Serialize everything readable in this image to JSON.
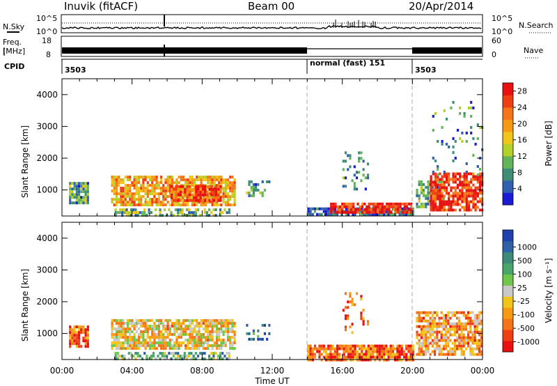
{
  "header": {
    "station": "Inuvik (fitACF)",
    "beam": "Beam 00",
    "date": "20/Apr/2014"
  },
  "strip": {
    "nsky_label": "N.Sky",
    "nsearch_label": "N.Search",
    "freq_label_line1": "Freq.",
    "freq_label_line2": "[MHz]",
    "nave_label": "Nave",
    "cpid_label": "CPID",
    "noise_left_ticks": [
      "10^5",
      "10^0"
    ],
    "noise_right_ticks": [
      "10^5",
      "10^0"
    ],
    "freq_left_ticks": [
      "18",
      "8"
    ],
    "freq_right_ticks": [
      "60",
      "0"
    ],
    "cpid_segments": [
      {
        "start_hour": 0,
        "end_hour": 14,
        "label": "3503"
      },
      {
        "start_hour": 14,
        "end_hour": 20,
        "label": "normal (fast) 151"
      },
      {
        "start_hour": 20,
        "end_hour": 24,
        "label": "3503"
      }
    ]
  },
  "chart_data": [
    {
      "type": "heatmap",
      "panel": "power",
      "xlabel": "",
      "ylabel": "Slant Range [km]",
      "xlim": [
        0,
        24
      ],
      "ylim": [
        180,
        4500
      ],
      "yticks": [
        1000,
        2000,
        3000,
        4000
      ],
      "colorbar": {
        "label": "Power [dB]",
        "ticks": [
          "4",
          "8",
          "12",
          "16",
          "20",
          "24",
          "28"
        ],
        "range": [
          0,
          30
        ],
        "colors": [
          "#1b1bd6",
          "#2f5fae",
          "#3e8d77",
          "#63b35a",
          "#b2d02a",
          "#f0c418",
          "#f59a13",
          "#f4741a",
          "#ee3f14",
          "#e81010"
        ]
      },
      "regions": [
        {
          "x": [
            0.4,
            1.5
          ],
          "y": [
            600,
            1250
          ],
          "level": 0.3,
          "density": 0.85
        },
        {
          "x": [
            2.8,
            9.8
          ],
          "y": [
            560,
            1450
          ],
          "level": 0.65,
          "density": 0.8
        },
        {
          "x": [
            6.2,
            9.0
          ],
          "y": [
            700,
            1150
          ],
          "level": 0.85,
          "density": 0.8
        },
        {
          "x": [
            3.0,
            9.5
          ],
          "y": [
            190,
            420
          ],
          "level": 0.35,
          "density": 0.55
        },
        {
          "x": [
            10.5,
            11.8
          ],
          "y": [
            800,
            1300
          ],
          "level": 0.3,
          "density": 0.5
        },
        {
          "x": [
            14.0,
            20.0
          ],
          "y": [
            190,
            450
          ],
          "level": 0.15,
          "density": 0.85
        },
        {
          "x": [
            15.3,
            19.9
          ],
          "y": [
            280,
            600
          ],
          "level": 0.9,
          "density": 0.85
        },
        {
          "x": [
            16.0,
            17.4
          ],
          "y": [
            1000,
            2300
          ],
          "level": 0.2,
          "density": 0.25
        },
        {
          "x": [
            20.2,
            21.8
          ],
          "y": [
            450,
            1300
          ],
          "level": 0.3,
          "density": 0.6
        },
        {
          "x": [
            21.0,
            24.0
          ],
          "y": [
            350,
            1550
          ],
          "level": 0.9,
          "density": 0.75
        },
        {
          "x": [
            21.0,
            24.0
          ],
          "y": [
            1500,
            3800
          ],
          "level": 0.25,
          "density": 0.08
        }
      ]
    },
    {
      "type": "heatmap",
      "panel": "velocity",
      "xlabel": "Time UT",
      "ylabel": "Slant Range [km]",
      "xlim": [
        0,
        24
      ],
      "ylim": [
        180,
        4500
      ],
      "xticks": [
        "00:00",
        "04:00",
        "08:00",
        "12:00",
        "16:00",
        "20:00",
        "00:00"
      ],
      "yticks": [
        1000,
        2000,
        3000,
        4000
      ],
      "colorbar": {
        "label": "Velocity [m s⁻¹]",
        "ticks": [
          "1000",
          "500",
          "100",
          "25",
          "-25",
          "-100",
          "-500",
          "-1000"
        ],
        "colors": [
          "#2040b0",
          "#2f62a4",
          "#3e8a7a",
          "#49a66a",
          "#6ec64a",
          "#c8c8c8",
          "#f0c418",
          "#f59a13",
          "#f4741a",
          "#ee3f14",
          "#e81010"
        ]
      },
      "regions": [
        {
          "x": [
            0.4,
            1.5
          ],
          "y": [
            600,
            1250
          ],
          "level": 0.8,
          "density": 0.8
        },
        {
          "x": [
            2.8,
            9.8
          ],
          "y": [
            560,
            1450
          ],
          "level": 0.6,
          "density": 0.8
        },
        {
          "x": [
            3.0,
            9.5
          ],
          "y": [
            190,
            420
          ],
          "level": 0.35,
          "density": 0.5
        },
        {
          "x": [
            10.5,
            11.8
          ],
          "y": [
            800,
            1300
          ],
          "level": 0.2,
          "density": 0.45
        },
        {
          "x": [
            14.0,
            20.0
          ],
          "y": [
            190,
            650
          ],
          "level": 0.8,
          "density": 0.85
        },
        {
          "x": [
            16.0,
            17.4
          ],
          "y": [
            1000,
            2300
          ],
          "level": 0.8,
          "density": 0.22
        },
        {
          "x": [
            20.2,
            24.0
          ],
          "y": [
            350,
            1700
          ],
          "level": 0.7,
          "density": 0.7
        }
      ]
    }
  ]
}
